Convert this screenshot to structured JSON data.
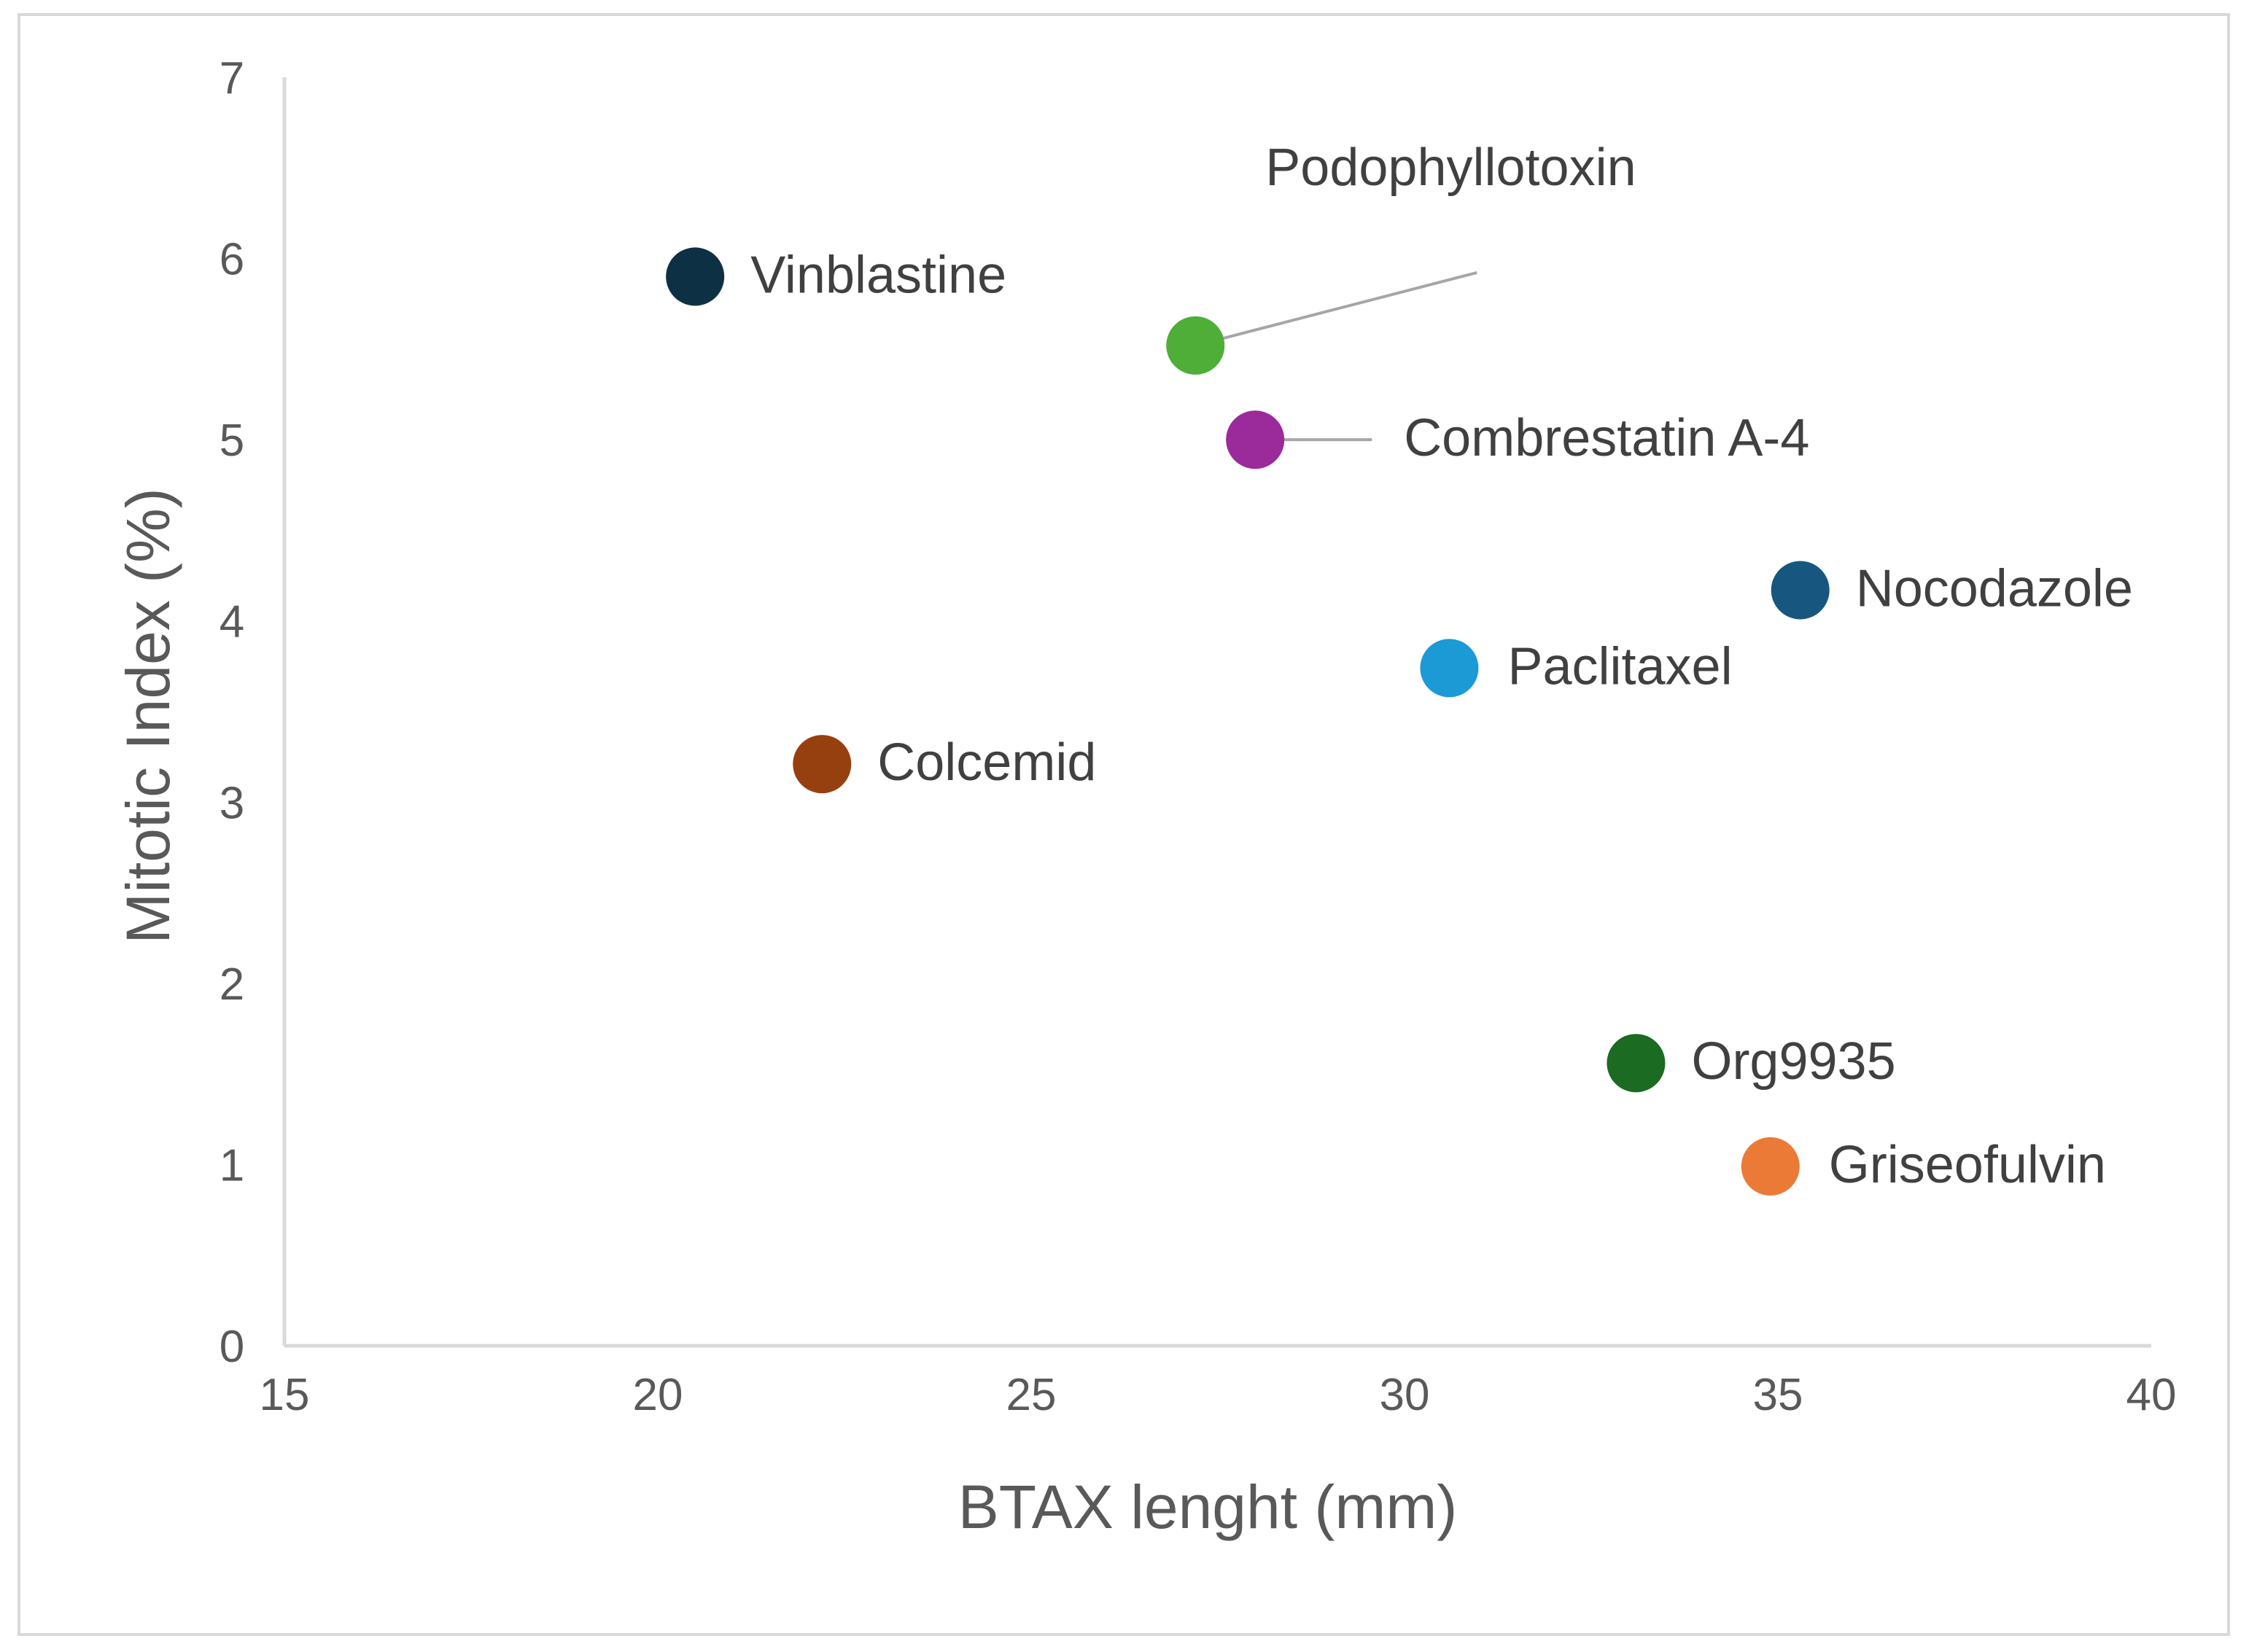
{
  "chart_data": {
    "type": "scatter",
    "title": "",
    "xlabel": "BTAX lenght (mm)",
    "ylabel": "Mitotic Index (%)",
    "xlim": [
      15,
      40
    ],
    "ylim": [
      0,
      7
    ],
    "xticks": [
      "15",
      "20",
      "25",
      "30",
      "35",
      "40"
    ],
    "yticks": [
      "0",
      "1",
      "2",
      "3",
      "4",
      "5",
      "6",
      "7"
    ],
    "grid": false,
    "legend": "none",
    "points": [
      {
        "label": "Vinblastine",
        "x": 20.5,
        "y": 5.9,
        "color": "#0e3045"
      },
      {
        "label": "Podophyllotoxin",
        "x": 27.2,
        "y": 5.52,
        "color": "#4eae37"
      },
      {
        "label": "Combrestatin A-4",
        "x": 28.0,
        "y": 5.0,
        "color": "#9b2a9a"
      },
      {
        "label": "Nocodazole",
        "x": 35.3,
        "y": 4.17,
        "color": "#17577f"
      },
      {
        "label": "Paclitaxel",
        "x": 30.6,
        "y": 3.74,
        "color": "#1c9ad6"
      },
      {
        "label": "Colcemid",
        "x": 22.2,
        "y": 3.21,
        "color": "#97400f"
      },
      {
        "label": "Org9935",
        "x": 33.1,
        "y": 1.56,
        "color": "#1b6b22"
      },
      {
        "label": "Griseofulvin",
        "x": 34.9,
        "y": 0.99,
        "color": "#ec7a37"
      }
    ]
  }
}
